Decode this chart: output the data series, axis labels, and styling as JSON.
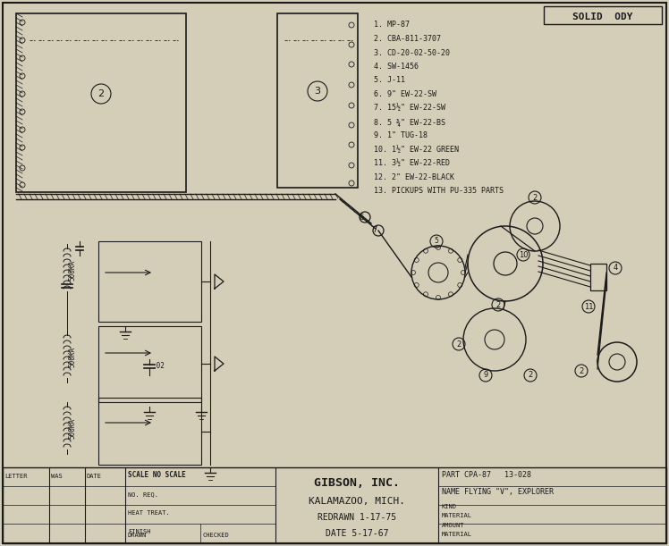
{
  "bg_color": "#d4cdb8",
  "line_color": "#1a1a1a",
  "title_box_text": "SOLID  ODY",
  "parts_list": [
    "1. MP-87",
    "2. CBA-811-3707",
    "3. CD-20-02-50-20",
    "4. SW-1456",
    "5. J-11",
    "6. 9\" EW-22-SW",
    "7. 15½\" EW-22-SW",
    "8. 5 ¾\" EW-22-BS",
    "9. 1\" TUG-18",
    "10. 1½\" EW-22 GREEN",
    "11. 3½\" EW-22-RED",
    "12. 2\" EW-22-BLACK",
    "13. PICKUPS WITH PU-335 PARTS"
  ],
  "title_block": {
    "company": "GIBSON, INC.",
    "location": "KALAMAZOO, MICH.",
    "redrawn": "REDRAWN 1-17-75",
    "date": "DATE 5-17-67",
    "part": "PART CPA-87   13-028",
    "name": "NAME FLYING \"V\", EXPLORER",
    "kind": "KIND",
    "material_label": "MATERIAL",
    "amount": "AMOUNT",
    "material2": "MATERIAL",
    "scale": "SCALE NO SCALE",
    "no_req": "NO. REQ.",
    "heat_treat": "HEAT TREAT.",
    "finish": "FINISH",
    "drawn": "DRAWN",
    "checked": "CHECKED",
    "letter_label": "LETTER",
    "was_label": "WAS",
    "date_label": "DATE"
  }
}
